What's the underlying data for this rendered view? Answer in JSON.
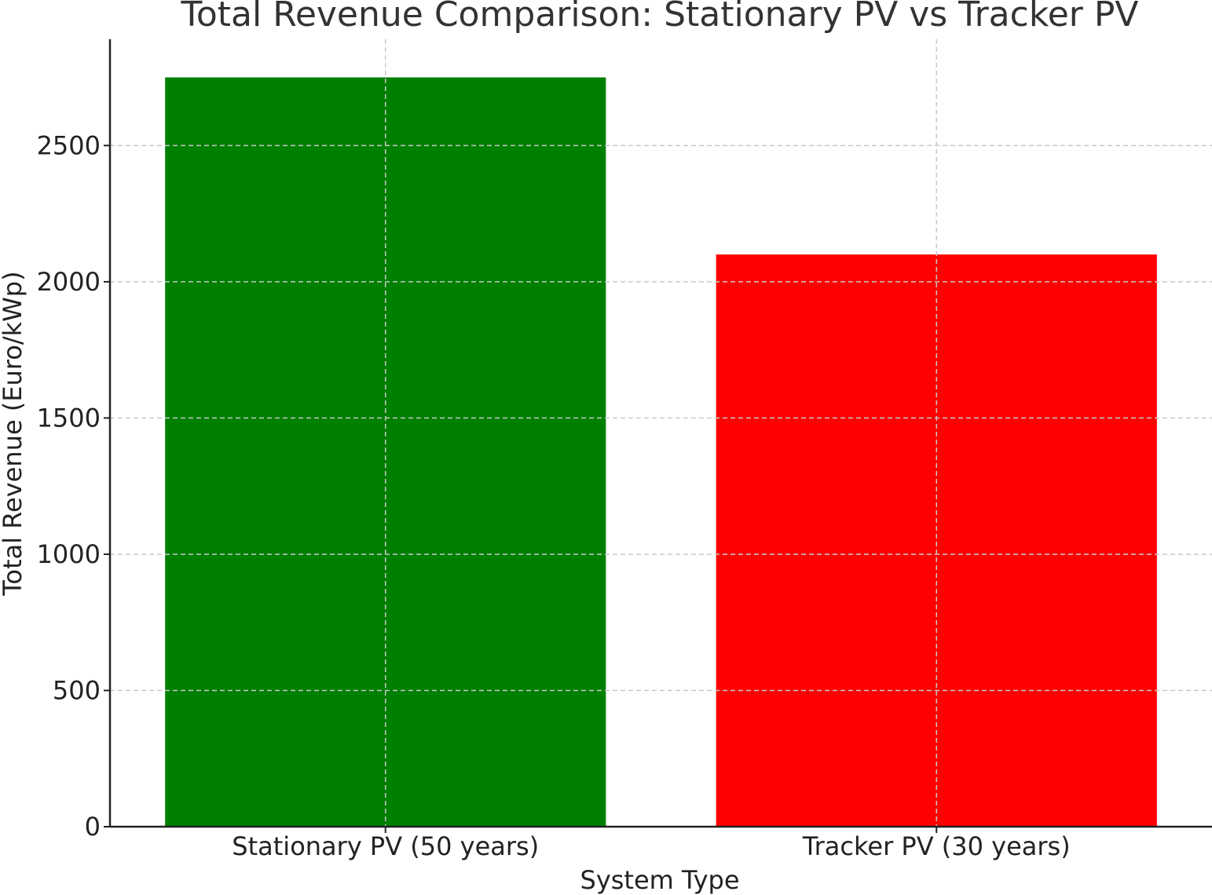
{
  "chart_data": {
    "type": "bar",
    "title": "Total Revenue Comparison: Stationary PV vs Tracker PV",
    "xlabel": "System Type",
    "ylabel": "Total Revenue (Euro/kWp)",
    "categories": [
      "Stationary PV (50 years)",
      "Tracker PV (30 years)"
    ],
    "values": [
      2750,
      2100
    ],
    "colors": [
      "#008000",
      "#ff0000"
    ],
    "ylim": [
      0,
      2890
    ],
    "yticks": [
      0,
      500,
      1000,
      1500,
      2000,
      2500
    ],
    "grid": true,
    "legend": "none"
  }
}
